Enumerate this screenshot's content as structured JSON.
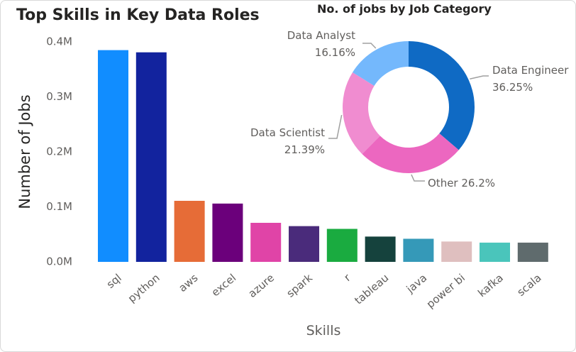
{
  "chart_data": [
    {
      "type": "bar",
      "title": "Top Skills in Key Data Roles",
      "xlabel": "Skills",
      "ylabel": "Number of Jobs",
      "categories": [
        "sql",
        "python",
        "aws",
        "excel",
        "azure",
        "spark",
        "r",
        "tableau",
        "java",
        "power bi",
        "kafka",
        "scala"
      ],
      "values": [
        385000,
        381000,
        111000,
        106000,
        71000,
        65000,
        60000,
        46000,
        42000,
        37000,
        35000,
        35000
      ],
      "colors": [
        "#118DFF",
        "#12239E",
        "#E66C37",
        "#6B007B",
        "#E044A7",
        "#4A2B7B",
        "#1AAB40",
        "#15423D",
        "#3599B8",
        "#DFBFBF",
        "#4AC5BB",
        "#5F6B6D"
      ],
      "ylim": [
        0,
        400000
      ],
      "yticks": [
        0,
        100000,
        200000,
        300000,
        400000
      ],
      "yticklabels": [
        "0.0M",
        "0.1M",
        "0.2M",
        "0.3M",
        "0.4M"
      ],
      "grid": false
    },
    {
      "type": "pie",
      "title": "No. of jobs by Job Category",
      "slices": [
        {
          "label": "Data Engineer",
          "value": 36.25,
          "pct": "36.25%",
          "color": "#0F6AC4"
        },
        {
          "label": "Other",
          "value": 26.2,
          "pct": "26.2%",
          "color": "#EC67C0"
        },
        {
          "label": "Data Scientist",
          "value": 21.39,
          "pct": "21.39%",
          "color": "#F08CD0"
        },
        {
          "label": "Data Analyst",
          "value": 16.16,
          "pct": "16.16%",
          "color": "#74B8FC"
        }
      ]
    }
  ]
}
